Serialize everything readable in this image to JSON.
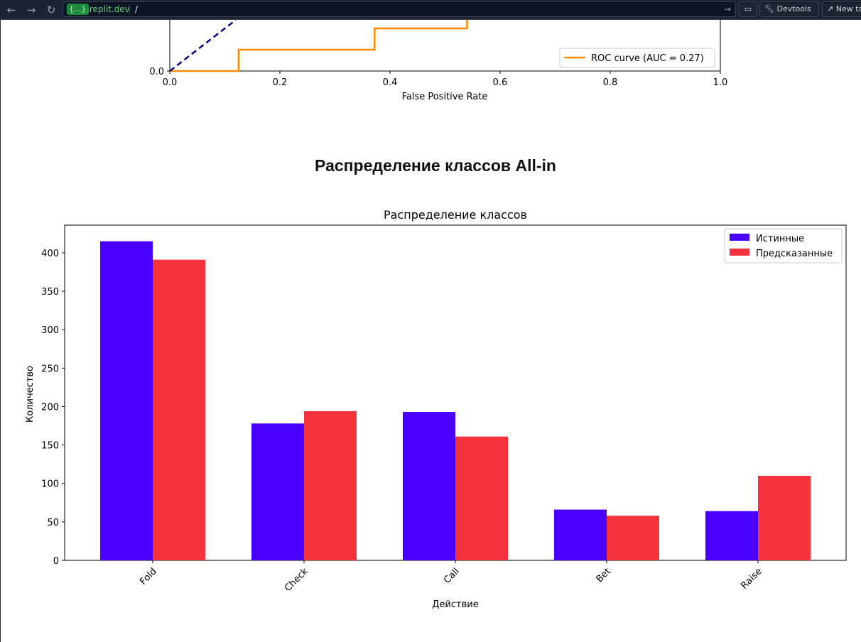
{
  "browser": {
    "url_badge": "{...}",
    "url_domain": ".replit.dev",
    "url_path": "/",
    "devtools_label": "Devtools",
    "new_tab_label": "New tab"
  },
  "section_heading": "Распределение классов All-in",
  "chart_data": [
    {
      "type": "line",
      "xlabel": "False Positive Rate",
      "ylabel": "",
      "xlim": [
        0.0,
        1.0
      ],
      "x_ticks": [
        "0.0",
        "0.2",
        "0.4",
        "0.6",
        "0.8",
        "1.0"
      ],
      "y_ticks_visible": [
        "0.0"
      ],
      "legend_position": "lower-right",
      "series": [
        {
          "name": "ROC curve (AUC = 0.27)",
          "color": "#ff8c00",
          "x": [
            0.0,
            0.125,
            0.125,
            0.372,
            0.372,
            0.54,
            0.54
          ],
          "y": [
            0.0,
            0.0,
            0.1,
            0.1,
            0.2,
            0.2,
            0.3
          ]
        },
        {
          "name": "",
          "color": "#000080",
          "style": "dashed",
          "x": [
            0.0,
            0.12
          ],
          "y": [
            0.0,
            0.24
          ]
        }
      ]
    },
    {
      "type": "bar",
      "title": "Распределение классов",
      "xlabel": "Действие",
      "ylabel": "Количество",
      "categories": [
        "Fold",
        "Check",
        "Call",
        "Bet",
        "Raise"
      ],
      "ylim": [
        0,
        436
      ],
      "y_ticks": [
        0,
        50,
        100,
        150,
        200,
        250,
        300,
        350,
        400
      ],
      "legend_position": "top-right",
      "series": [
        {
          "name": "Истинные",
          "color": "#4a00ff",
          "values": [
            415,
            178,
            193,
            66,
            64
          ]
        },
        {
          "name": "Предсказанные",
          "color": "#f5333d",
          "values": [
            391,
            194,
            161,
            58,
            110
          ]
        }
      ]
    }
  ]
}
